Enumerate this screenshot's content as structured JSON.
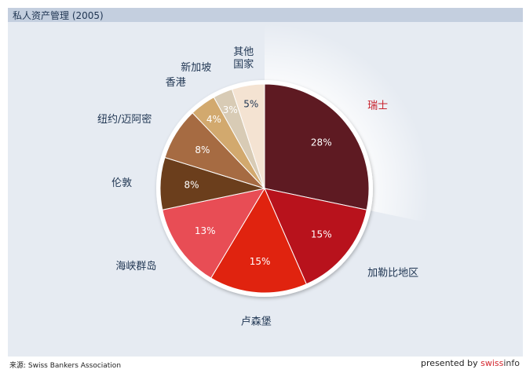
{
  "header": {
    "title": "私人资产管理 (2005)"
  },
  "footer": {
    "source": "来源: Swiss Bankers Association",
    "credit_prefix": "presented by ",
    "credit_brand_a": "swiss",
    "credit_brand_b": "info"
  },
  "chart_data": {
    "type": "pie",
    "title": "私人资产管理 (2005)",
    "start_angle_deg": 0,
    "direction": "clockwise",
    "exploded_slice": "瑞士",
    "slices": [
      {
        "label": "瑞士",
        "value": 28,
        "value_label": "28%",
        "color": "#5e1a22",
        "label_color": "#c8212c"
      },
      {
        "label": "加勒比地区",
        "value": 15,
        "value_label": "15%",
        "color": "#b8121c",
        "label_color": "#1f3552"
      },
      {
        "label": "卢森堡",
        "value": 15,
        "value_label": "15%",
        "color": "#e0230f",
        "label_color": "#1f3552"
      },
      {
        "label": "海峡群岛",
        "value": 13,
        "value_label": "13%",
        "color": "#e84d55",
        "label_color": "#1f3552"
      },
      {
        "label": "伦敦",
        "value": 8,
        "value_label": "8%",
        "color": "#6b3e1c",
        "label_color": "#1f3552"
      },
      {
        "label": "纽约/迈阿密",
        "value": 8,
        "value_label": "8%",
        "color": "#a66b42",
        "label_color": "#1f3552"
      },
      {
        "label": "香港",
        "value": 4,
        "value_label": "4%",
        "color": "#d2a96e",
        "label_color": "#1f3552"
      },
      {
        "label": "新加坡",
        "value": 3,
        "value_label": "3%",
        "color": "#d8cbb5",
        "label_color": "#1f3552"
      },
      {
        "label": "其他\n国家",
        "value": 5,
        "value_label": "5%",
        "color": "#f4e3d2",
        "label_color": "#1f3552"
      }
    ]
  }
}
